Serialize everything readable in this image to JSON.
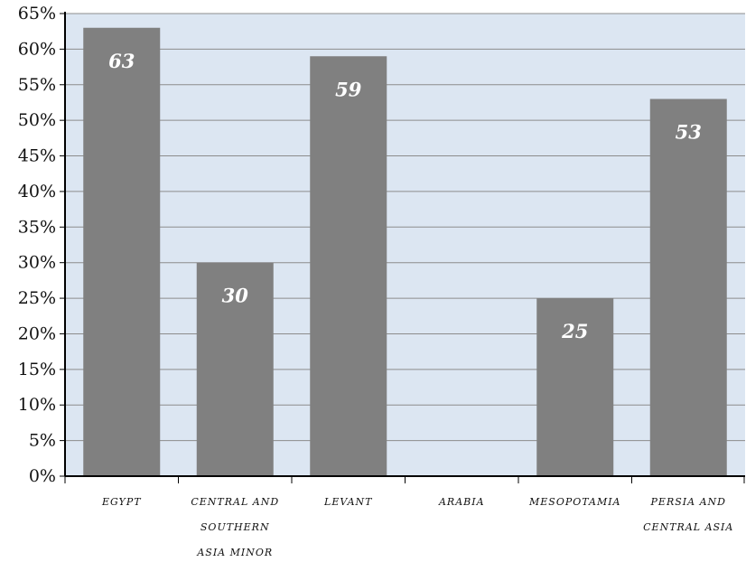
{
  "chart_data": {
    "type": "bar",
    "title": "",
    "xlabel": "",
    "ylabel": "",
    "categories": [
      [
        "EGYPT"
      ],
      [
        "CENTRAL AND",
        "SOUTHERN",
        "ASIA MINOR"
      ],
      [
        "LEVANT"
      ],
      [
        "ARABIA"
      ],
      [
        "MESOPOTAMIA"
      ],
      [
        "PERSIA AND",
        "CENTRAL ASIA"
      ]
    ],
    "values": [
      63,
      30,
      59,
      0,
      25,
      53
    ],
    "data_labels": [
      "63",
      "30",
      "59",
      "",
      "25",
      "53"
    ],
    "ylim": [
      0,
      65
    ],
    "ytick_step": 5,
    "ytick_labels": [
      "0%",
      "5%",
      "10%",
      "15%",
      "20%",
      "25%",
      "30%",
      "35%",
      "40%",
      "45%",
      "50%",
      "55%",
      "60%",
      "65%"
    ],
    "grid": true,
    "legend": "none",
    "colors": {
      "plot_background": "#dce6f2",
      "bar": "#808080",
      "gridline": "#8c8c8c",
      "axis": "#000000",
      "data_label": "#ffffff"
    }
  }
}
